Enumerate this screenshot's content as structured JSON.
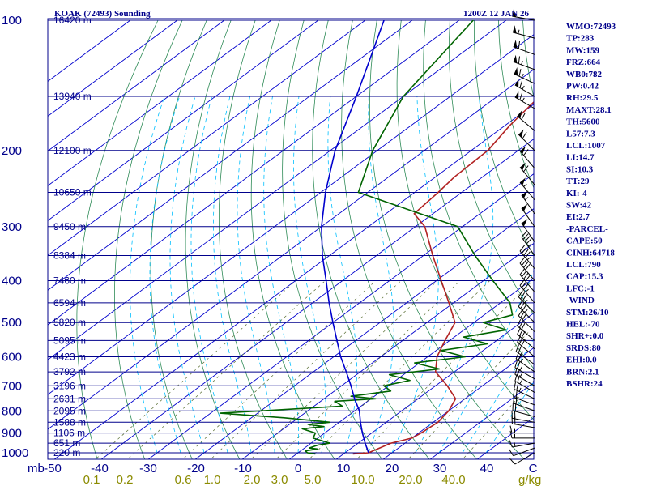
{
  "header": {
    "station": "KOAK (72493) Sounding",
    "time": "1200Z 12 JAN 26"
  },
  "indices": [
    "WMO:72493",
    "TP:283",
    "MW:159",
    "FRZ:664",
    "WB0:782",
    "PW:0.42",
    "RH:29.5",
    "MAXT:28.1",
    "TH:5600",
    "L57:7.3",
    "LCL:1007",
    "LI:14.7",
    "SI:10.3",
    "TT:29",
    "KI:-4",
    "SW:42",
    "EI:2.7",
    "-PARCEL-",
    "CAPE:50",
    "CINH:64718",
    "LCL:790",
    "CAP:15.3",
    "LFC:-1",
    "-WIND-",
    "STM:26/10",
    "HEL:-70",
    "SHR+:0.0",
    "SRDS:80",
    "EHI:0.0",
    "BRN:2.1",
    "BSHR:24"
  ],
  "colors": {
    "isobar": "#00008b",
    "isotherm": "#0000cd",
    "dry_adiabat": "#2e8b57",
    "moist_adiabat": "#00bfff",
    "mixing_ratio": "#556b2f",
    "temperature": "#b22222",
    "dewpoint": "#006400",
    "parcel": "#0000cd"
  },
  "chart_data": {
    "type": "line",
    "diagram": "skew-T log-p",
    "pressure_levels_mb": [
      100,
      200,
      300,
      400,
      500,
      600,
      700,
      800,
      900,
      1000
    ],
    "pressure_label_unit": "mb",
    "temperature_axis_c": [
      -50,
      -40,
      -30,
      -20,
      -10,
      0,
      10,
      20,
      30,
      40
    ],
    "temperature_tick_labels": [
      "-50",
      "-40",
      "-30",
      "-20",
      "-10",
      "0",
      "10",
      "20",
      "30",
      "40"
    ],
    "temperature_unit": "C",
    "mixing_ratio_labels": [
      "0.1",
      "0.2",
      "0.6",
      "1.0",
      "2.0",
      "3.0",
      "5.0",
      "10.0",
      "20.0",
      "40.0"
    ],
    "mixing_ratio_unit": "g/kg",
    "height_labels": [
      {
        "p": 100,
        "label": "16420 m"
      },
      {
        "p": 150,
        "label": "13940 m"
      },
      {
        "p": 200,
        "label": "12100 m"
      },
      {
        "p": 250,
        "label": "10650 m"
      },
      {
        "p": 300,
        "label": "9450 m"
      },
      {
        "p": 350,
        "label": "8384 m"
      },
      {
        "p": 400,
        "label": "7460 m"
      },
      {
        "p": 450,
        "label": "6594 m"
      },
      {
        "p": 500,
        "label": "5820 m"
      },
      {
        "p": 550,
        "label": "5095 m"
      },
      {
        "p": 600,
        "label": "4423 m"
      },
      {
        "p": 650,
        "label": "3792 m"
      },
      {
        "p": 700,
        "label": "3196 m"
      },
      {
        "p": 750,
        "label": "2631 m"
      },
      {
        "p": 800,
        "label": "2095 m"
      },
      {
        "p": 850,
        "label": "1588 m"
      },
      {
        "p": 900,
        "label": "1106 m"
      },
      {
        "p": 950,
        "label": "651 m"
      },
      {
        "p": 1000,
        "label": "220 m"
      }
    ],
    "series": [
      {
        "key": "temperature",
        "points": [
          [
            1006,
            12.0
          ],
          [
            1000,
            15.0
          ],
          [
            975,
            16.0
          ],
          [
            950,
            17.0
          ],
          [
            925,
            20.0
          ],
          [
            900,
            20.5
          ],
          [
            850,
            21.0
          ],
          [
            800,
            20.0
          ],
          [
            750,
            18.0
          ],
          [
            700,
            12.5
          ],
          [
            650,
            6.0
          ],
          [
            600,
            2.0
          ],
          [
            550,
            -1.0
          ],
          [
            500,
            -4.0
          ],
          [
            450,
            -11.0
          ],
          [
            400,
            -19.0
          ],
          [
            350,
            -28.0
          ],
          [
            300,
            -38.0
          ],
          [
            280,
            -44.0
          ],
          [
            250,
            -45.0
          ],
          [
            230,
            -46.0
          ],
          [
            200,
            -46.5
          ],
          [
            175,
            -49.0
          ],
          [
            150,
            -51.0
          ],
          [
            125,
            -52.0
          ],
          [
            100,
            -54.5
          ]
        ]
      },
      {
        "key": "dewpoint",
        "points": [
          [
            1006,
            4.0
          ],
          [
            1000,
            2.0
          ],
          [
            990,
            1.0
          ],
          [
            980,
            3.0
          ],
          [
            975,
            1.0
          ],
          [
            960,
            2.0
          ],
          [
            950,
            4.0
          ],
          [
            925,
            -1.0
          ],
          [
            900,
            -2.0
          ],
          [
            880,
            -6.0
          ],
          [
            870,
            -2.0
          ],
          [
            860,
            -6.0
          ],
          [
            850,
            -2.0
          ],
          [
            830,
            -13.0
          ],
          [
            810,
            -28.0
          ],
          [
            800,
            -20.0
          ],
          [
            780,
            -4.0
          ],
          [
            760,
            -7.0
          ],
          [
            750,
            1.0
          ],
          [
            740,
            -5.0
          ],
          [
            720,
            2.0
          ],
          [
            700,
            -1.0
          ],
          [
            680,
            3.0
          ],
          [
            660,
            -3.0
          ],
          [
            640,
            6.0
          ],
          [
            620,
            -1.0
          ],
          [
            600,
            8.0
          ],
          [
            580,
            1.0
          ],
          [
            560,
            9.0
          ],
          [
            540,
            2.0
          ],
          [
            520,
            9.0
          ],
          [
            500,
            2.0
          ],
          [
            480,
            6.0
          ],
          [
            450,
            2.0
          ],
          [
            400,
            -8.0
          ],
          [
            350,
            -19.0
          ],
          [
            300,
            -31.0
          ],
          [
            250,
            -62.0
          ],
          [
            200,
            -71.0
          ],
          [
            150,
            -80.0
          ],
          [
            100,
            -87.0
          ]
        ]
      },
      {
        "key": "parcel",
        "points": [
          [
            1000,
            15.0
          ],
          [
            950,
            11.5
          ],
          [
            900,
            8.0
          ],
          [
            850,
            4.5
          ],
          [
            800,
            1.0
          ],
          [
            750,
            -3.5
          ],
          [
            700,
            -8.0
          ],
          [
            650,
            -13.0
          ],
          [
            600,
            -18.5
          ],
          [
            550,
            -24.0
          ],
          [
            500,
            -30.0
          ],
          [
            450,
            -36.5
          ],
          [
            400,
            -43.5
          ],
          [
            350,
            -51.5
          ],
          [
            300,
            -60.0
          ],
          [
            250,
            -69.0
          ],
          [
            200,
            -79.0
          ],
          [
            150,
            -90.0
          ],
          [
            100,
            -106.0
          ]
        ]
      }
    ],
    "winds": [
      {
        "p": 1000,
        "dir": 240,
        "spd": 10
      },
      {
        "p": 975,
        "dir": 250,
        "spd": 10
      },
      {
        "p": 950,
        "dir": 260,
        "spd": 15
      },
      {
        "p": 925,
        "dir": 270,
        "spd": 15
      },
      {
        "p": 900,
        "dir": 270,
        "spd": 15
      },
      {
        "p": 875,
        "dir": 280,
        "spd": 20
      },
      {
        "p": 850,
        "dir": 280,
        "spd": 20
      },
      {
        "p": 825,
        "dir": 285,
        "spd": 20
      },
      {
        "p": 800,
        "dir": 290,
        "spd": 20
      },
      {
        "p": 775,
        "dir": 290,
        "spd": 20
      },
      {
        "p": 750,
        "dir": 295,
        "spd": 25
      },
      {
        "p": 725,
        "dir": 300,
        "spd": 25
      },
      {
        "p": 700,
        "dir": 300,
        "spd": 25
      },
      {
        "p": 675,
        "dir": 300,
        "spd": 25
      },
      {
        "p": 650,
        "dir": 305,
        "spd": 25
      },
      {
        "p": 625,
        "dir": 305,
        "spd": 25
      },
      {
        "p": 600,
        "dir": 310,
        "spd": 30
      },
      {
        "p": 575,
        "dir": 310,
        "spd": 30
      },
      {
        "p": 550,
        "dir": 310,
        "spd": 30
      },
      {
        "p": 525,
        "dir": 315,
        "spd": 30
      },
      {
        "p": 500,
        "dir": 315,
        "spd": 35
      },
      {
        "p": 475,
        "dir": 315,
        "spd": 35
      },
      {
        "p": 450,
        "dir": 320,
        "spd": 35
      },
      {
        "p": 425,
        "dir": 320,
        "spd": 40
      },
      {
        "p": 400,
        "dir": 320,
        "spd": 40
      },
      {
        "p": 375,
        "dir": 320,
        "spd": 45
      },
      {
        "p": 350,
        "dir": 325,
        "spd": 45
      },
      {
        "p": 325,
        "dir": 325,
        "spd": 50
      },
      {
        "p": 300,
        "dir": 325,
        "spd": 50
      },
      {
        "p": 280,
        "dir": 325,
        "spd": 55
      },
      {
        "p": 260,
        "dir": 320,
        "spd": 55
      },
      {
        "p": 240,
        "dir": 320,
        "spd": 60
      },
      {
        "p": 220,
        "dir": 320,
        "spd": 60
      },
      {
        "p": 200,
        "dir": 315,
        "spd": 60
      },
      {
        "p": 180,
        "dir": 310,
        "spd": 60
      },
      {
        "p": 160,
        "dir": 300,
        "spd": 65
      },
      {
        "p": 150,
        "dir": 300,
        "spd": 65
      },
      {
        "p": 140,
        "dir": 295,
        "spd": 65
      },
      {
        "p": 130,
        "dir": 290,
        "spd": 65
      },
      {
        "p": 120,
        "dir": 290,
        "spd": 60
      },
      {
        "p": 110,
        "dir": 285,
        "spd": 55
      },
      {
        "p": 100,
        "dir": 280,
        "spd": 50
      }
    ]
  }
}
